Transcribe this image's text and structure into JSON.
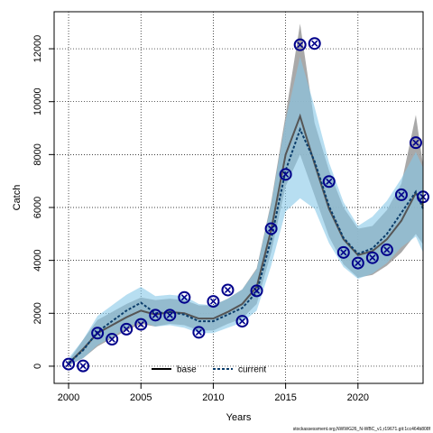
{
  "chart_data": {
    "type": "line",
    "xlabel": "Years",
    "ylabel": "Catch",
    "xlim": [
      1999,
      2024.5
    ],
    "ylim": [
      -650,
      13400
    ],
    "x_ticks": [
      2000,
      2005,
      2010,
      2015,
      2020
    ],
    "y_ticks": [
      0,
      2000,
      4000,
      6000,
      8000,
      10000,
      12000
    ],
    "grid": true,
    "legend_placement": "bottom-center",
    "colors": {
      "base_line": "#555555",
      "base_band": "#a0a0a0",
      "current_line": "#0b3d6b",
      "current_band": "#87c8e8",
      "observed": "#00008b"
    },
    "x": [
      2000,
      2001,
      2002,
      2003,
      2004,
      2005,
      2006,
      2007,
      2008,
      2009,
      2010,
      2011,
      2012,
      2013,
      2014,
      2015,
      2016,
      2017,
      2018,
      2019,
      2020,
      2021,
      2022,
      2023,
      2024
    ],
    "observed": [
      80,
      10,
      1250,
      1020,
      1400,
      1580,
      1930,
      1930,
      2600,
      1280,
      2450,
      2880,
      1700,
      2850,
      5200,
      7250,
      12150,
      12200,
      6980,
      4300,
      3900,
      4100,
      4400,
      6480,
      8450
    ],
    "observed_x_extra": [
      2024.5
    ],
    "observed_extra": [
      6400
    ],
    "series": [
      {
        "name": "base",
        "x": [
          2000,
          2001,
          2002,
          2003,
          2004,
          2005,
          2006,
          2007,
          2008,
          2009,
          2010,
          2011,
          2012,
          2013,
          2014,
          2015,
          2016,
          2017,
          2018,
          2019,
          2020,
          2021,
          2022,
          2023,
          2024,
          2024.5
        ],
        "values": [
          100,
          650,
          1250,
          1550,
          1850,
          2100,
          1950,
          2050,
          2000,
          1800,
          1800,
          2050,
          2350,
          3000,
          5150,
          8000,
          9450,
          7650,
          5950,
          4800,
          4200,
          4350,
          4800,
          5500,
          6550,
          6050
        ],
        "lower": [
          20,
          300,
          750,
          1050,
          1350,
          1600,
          1500,
          1600,
          1550,
          1350,
          1350,
          1600,
          1800,
          2350,
          4300,
          6800,
          8000,
          6450,
          4900,
          3850,
          3350,
          3450,
          3800,
          4300,
          5000,
          4600
        ],
        "upper": [
          200,
          1000,
          1750,
          2050,
          2350,
          2600,
          2500,
          2550,
          2500,
          2300,
          2300,
          2550,
          2900,
          3700,
          6200,
          9500,
          12950,
          9200,
          7400,
          6000,
          5200,
          5300,
          5900,
          6900,
          9500,
          7600
        ]
      },
      {
        "name": "current",
        "x": [
          2000,
          2001,
          2002,
          2003,
          2004,
          2005,
          2006,
          2007,
          2008,
          2009,
          2010,
          2011,
          2012,
          2013,
          2014,
          2015,
          2016,
          2017,
          2018,
          2019,
          2020,
          2021,
          2022,
          2023,
          2024,
          2024.5
        ],
        "values": [
          120,
          600,
          1300,
          1700,
          2100,
          2400,
          2000,
          2050,
          1950,
          1700,
          1700,
          1950,
          2200,
          2800,
          4800,
          7400,
          8950,
          7750,
          6050,
          4850,
          4250,
          4450,
          5000,
          5800,
          6600,
          5950
        ],
        "lower": [
          40,
          300,
          800,
          1100,
          1450,
          1700,
          1500,
          1550,
          1450,
          1250,
          1250,
          1450,
          1650,
          2100,
          3800,
          5850,
          6350,
          5950,
          4650,
          3750,
          3300,
          3500,
          3900,
          4500,
          4900,
          4300
        ],
        "upper": [
          300,
          1000,
          1900,
          2300,
          2700,
          3000,
          2650,
          2700,
          2650,
          2350,
          2300,
          2550,
          2900,
          3650,
          6100,
          9300,
          11700,
          9800,
          7700,
          6200,
          5300,
          5650,
          6250,
          7100,
          8100,
          7500
        ]
      }
    ]
  },
  "footer": "stockassessment.org,NWWG26_N-WBC_v1,r19671.git:1cc464b808f"
}
